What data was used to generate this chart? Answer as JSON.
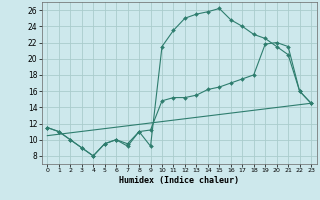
{
  "bg_color": "#cde8ec",
  "grid_color": "#aacccc",
  "line_color": "#2e7d6e",
  "xlabel": "Humidex (Indice chaleur)",
  "xlim": [
    -0.5,
    23.5
  ],
  "ylim": [
    7,
    27
  ],
  "yticks": [
    8,
    10,
    12,
    14,
    16,
    18,
    20,
    22,
    24,
    26
  ],
  "xticks": [
    0,
    1,
    2,
    3,
    4,
    5,
    6,
    7,
    8,
    9,
    10,
    11,
    12,
    13,
    14,
    15,
    16,
    17,
    18,
    19,
    20,
    21,
    22,
    23
  ],
  "curve1_x": [
    0,
    1,
    2,
    3,
    4,
    5,
    6,
    7,
    8,
    9,
    10,
    11,
    12,
    13,
    14,
    15,
    16,
    17,
    18,
    19,
    20,
    21,
    22,
    23
  ],
  "curve1_y": [
    11.5,
    11.0,
    10.0,
    9.0,
    8.0,
    9.5,
    10.0,
    9.2,
    11.0,
    9.2,
    21.5,
    23.5,
    25.0,
    25.5,
    25.8,
    26.2,
    24.8,
    24.0,
    23.0,
    22.5,
    21.5,
    20.5,
    16.0,
    14.5
  ],
  "curve2_x": [
    0,
    1,
    2,
    3,
    4,
    5,
    6,
    7,
    8,
    9,
    10,
    11,
    12,
    13,
    14,
    15,
    16,
    17,
    18,
    19,
    20,
    21,
    22,
    23
  ],
  "curve2_y": [
    11.5,
    11.0,
    10.0,
    9.0,
    8.0,
    9.5,
    10.0,
    9.5,
    11.0,
    11.2,
    14.8,
    15.2,
    15.2,
    15.5,
    16.2,
    16.5,
    17.0,
    17.5,
    18.0,
    21.8,
    22.0,
    21.5,
    16.0,
    14.5
  ],
  "curve3_x": [
    0,
    23
  ],
  "curve3_y": [
    10.5,
    14.5
  ]
}
